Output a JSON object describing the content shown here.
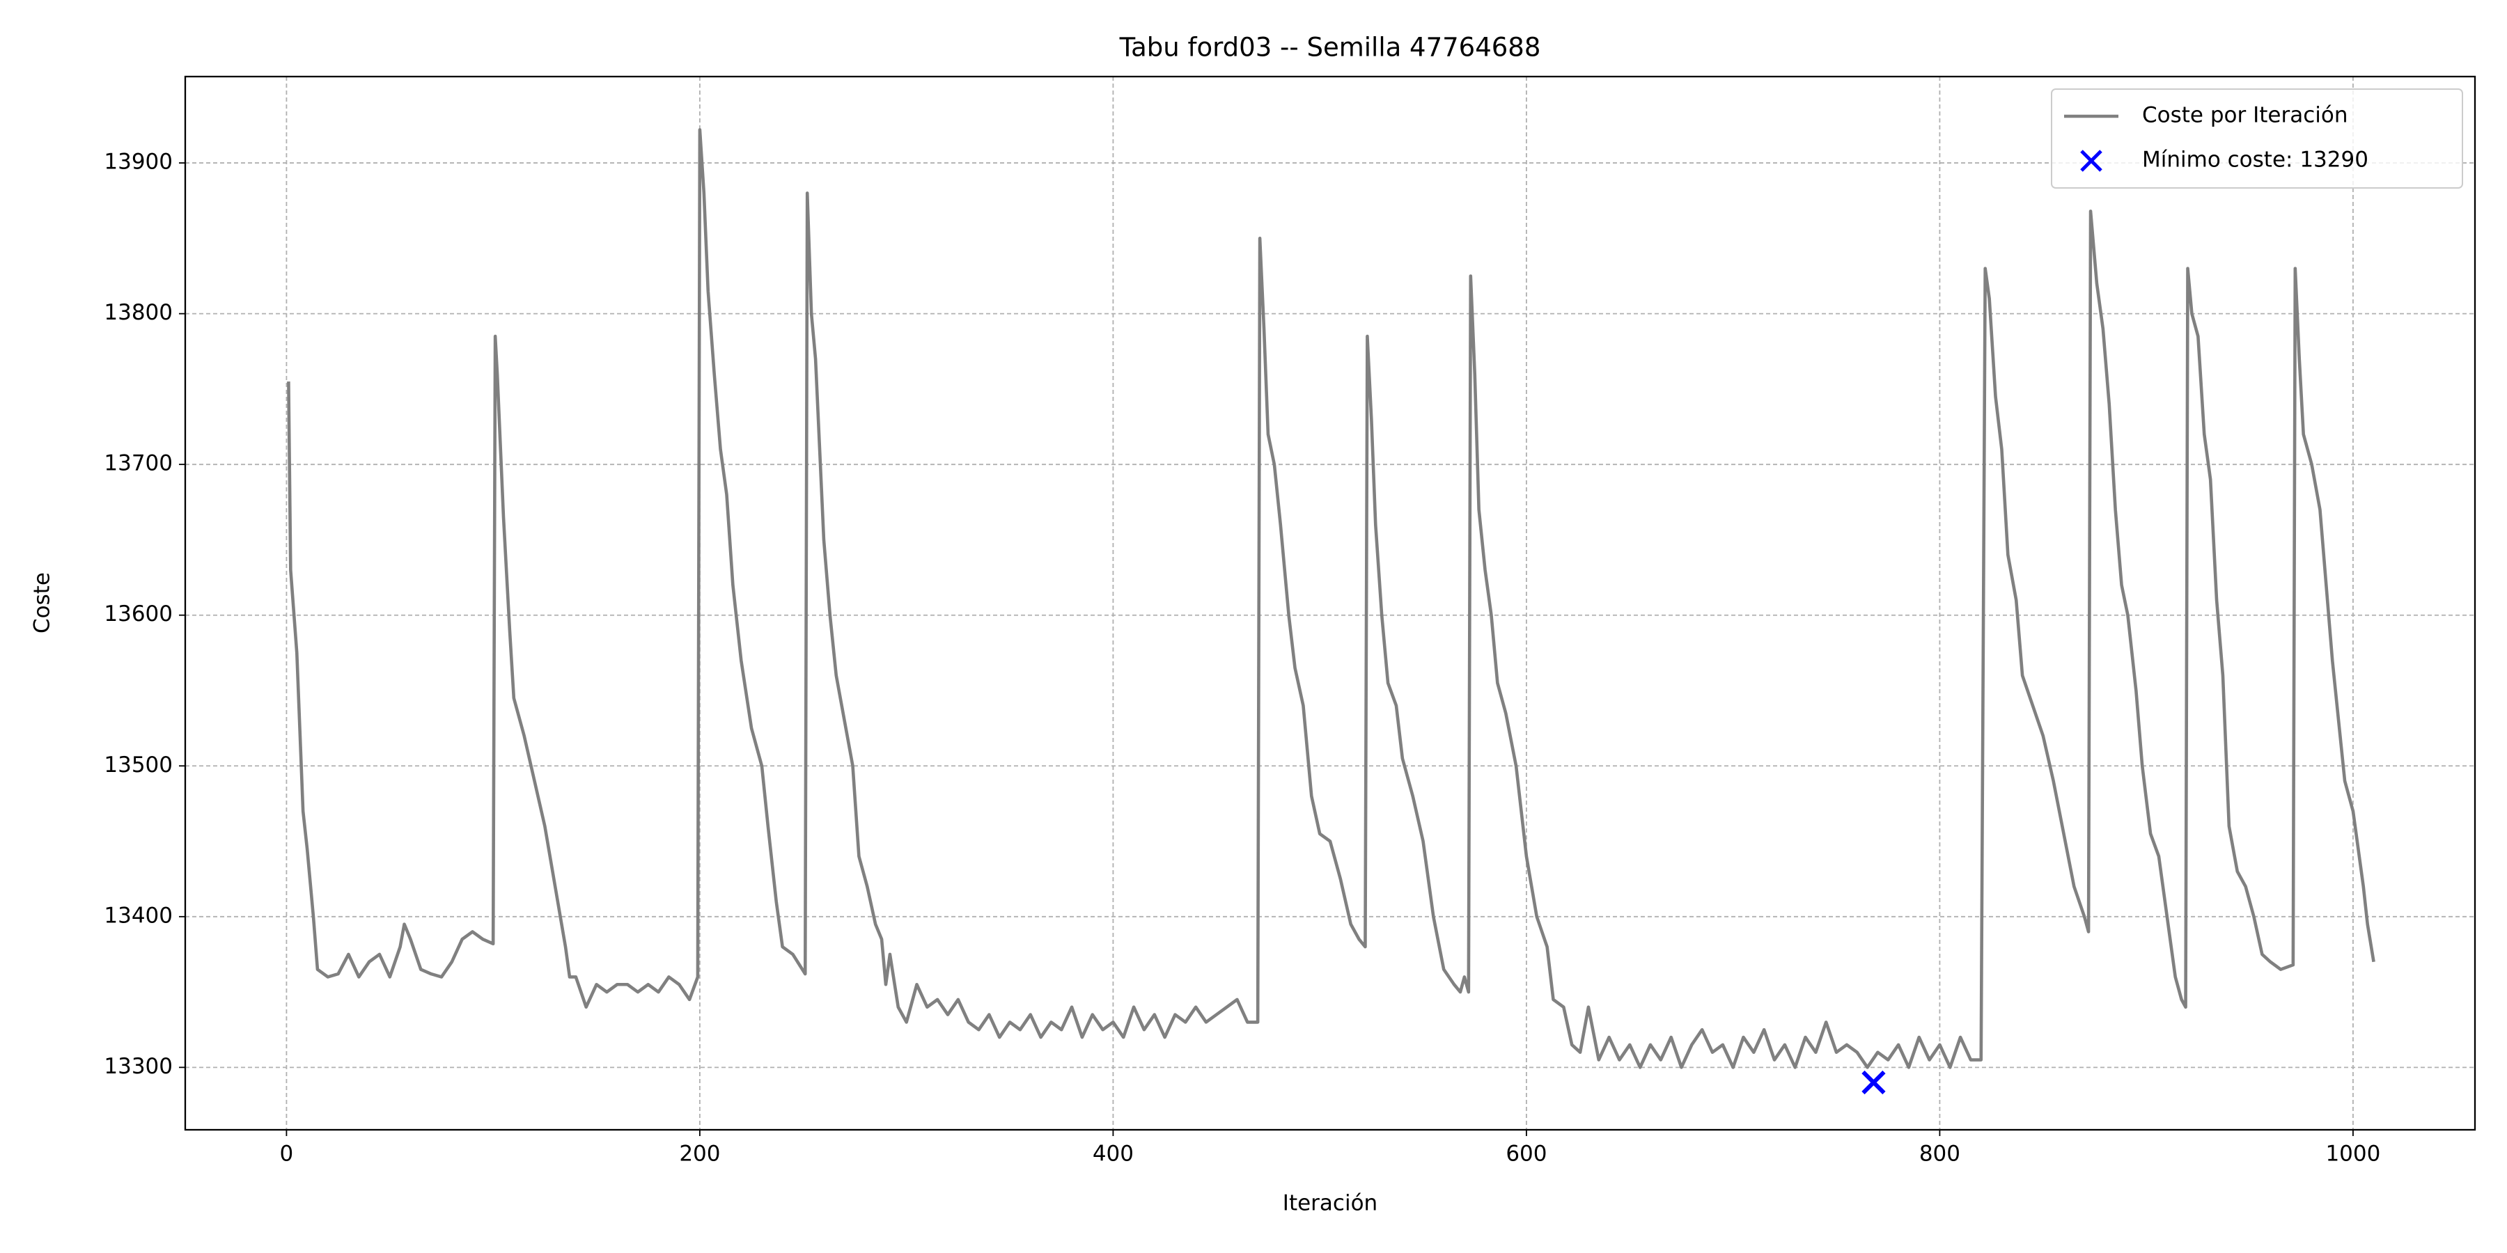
{
  "chart_data": {
    "type": "line",
    "title": "Tabu ford03 -- Semilla 47764688",
    "xlabel": "Iteración",
    "ylabel": "Coste",
    "xlim": [
      -49,
      1059
    ],
    "ylim": [
      13258.6,
      13957.3
    ],
    "xticks": [
      0,
      200,
      400,
      600,
      800,
      1000
    ],
    "yticks": [
      13300,
      13400,
      13500,
      13600,
      13700,
      13800,
      13900
    ],
    "grid": true,
    "legend": "upper right",
    "series": [
      {
        "name": "Coste por Iteración",
        "color": "#808080",
        "x": [
          1,
          2,
          5,
          8,
          10,
          13,
          15,
          20,
          25,
          30,
          35,
          40,
          45,
          50,
          55,
          57,
          60,
          65,
          70,
          75,
          80,
          85,
          90,
          95,
          100,
          101,
          102,
          105,
          108,
          110,
          115,
          120,
          125,
          130,
          135,
          137,
          140,
          145,
          150,
          155,
          160,
          165,
          170,
          175,
          180,
          185,
          190,
          195,
          199,
          200,
          202,
          204,
          207,
          210,
          213,
          216,
          220,
          225,
          230,
          233,
          237,
          240,
          245,
          251,
          252,
          254,
          256,
          258,
          260,
          263,
          266,
          270,
          274,
          277,
          281,
          285,
          288,
          290,
          292,
          296,
          300,
          305,
          310,
          315,
          320,
          325,
          330,
          335,
          340,
          345,
          350,
          355,
          360,
          365,
          370,
          375,
          380,
          385,
          390,
          395,
          400,
          405,
          410,
          415,
          420,
          425,
          430,
          435,
          440,
          445,
          450,
          455,
          460,
          465,
          470,
          471,
          473,
          475,
          478,
          481,
          485,
          488,
          492,
          496,
          500,
          505,
          510,
          515,
          519,
          522,
          523,
          525,
          527,
          530,
          533,
          537,
          540,
          545,
          550,
          555,
          560,
          565,
          568,
          570,
          572,
          573,
          575,
          577,
          580,
          583,
          586,
          590,
          595,
          600,
          605,
          610,
          613,
          618,
          622,
          626,
          630,
          635,
          640,
          645,
          650,
          655,
          660,
          665,
          670,
          675,
          680,
          685,
          690,
          695,
          700,
          705,
          710,
          715,
          720,
          725,
          730,
          735,
          740,
          745,
          750,
          755,
          760,
          765,
          770,
          775,
          780,
          785,
          790,
          795,
          800,
          805,
          810,
          815,
          820,
          822,
          824,
          827,
          830,
          833,
          837,
          840,
          845,
          850,
          855,
          860,
          865,
          870,
          872,
          873,
          876,
          879,
          882,
          885,
          888,
          891,
          895,
          898,
          902,
          906,
          910,
          914,
          917,
          919,
          920,
          922,
          925,
          928,
          931,
          934,
          937,
          940,
          944,
          948,
          952,
          956,
          960,
          965,
          971,
          972,
          974,
          976,
          980,
          984,
          987,
          990,
          993,
          996,
          1000,
          1005,
          1007,
          1010
        ],
        "values": [
          13755,
          13630,
          13575,
          13470,
          13445,
          13400,
          13365,
          13360,
          13362,
          13375,
          13360,
          13370,
          13375,
          13360,
          13380,
          13395,
          13385,
          13365,
          13362,
          13360,
          13370,
          13385,
          13390,
          13385,
          13382,
          13785,
          13760,
          13665,
          13590,
          13545,
          13520,
          13490,
          13460,
          13420,
          13380,
          13360,
          13360,
          13340,
          13355,
          13350,
          13355,
          13355,
          13350,
          13355,
          13350,
          13360,
          13355,
          13345,
          13360,
          13922,
          13880,
          13815,
          13760,
          13710,
          13680,
          13620,
          13570,
          13525,
          13500,
          13460,
          13410,
          13380,
          13375,
          13362,
          13880,
          13800,
          13770,
          13710,
          13650,
          13600,
          13560,
          13530,
          13500,
          13440,
          13420,
          13395,
          13385,
          13355,
          13375,
          13340,
          13330,
          13355,
          13340,
          13345,
          13335,
          13345,
          13330,
          13325,
          13335,
          13320,
          13330,
          13325,
          13335,
          13320,
          13330,
          13325,
          13340,
          13320,
          13335,
          13325,
          13330,
          13320,
          13340,
          13325,
          13335,
          13320,
          13335,
          13330,
          13340,
          13330,
          13335,
          13340,
          13345,
          13330,
          13330,
          13850,
          13790,
          13720,
          13700,
          13660,
          13600,
          13565,
          13540,
          13480,
          13455,
          13450,
          13425,
          13395,
          13385,
          13380,
          13785,
          13730,
          13660,
          13600,
          13555,
          13540,
          13505,
          13480,
          13450,
          13400,
          13365,
          13355,
          13350,
          13360,
          13350,
          13825,
          13760,
          13670,
          13630,
          13600,
          13555,
          13535,
          13500,
          13440,
          13400,
          13380,
          13345,
          13340,
          13315,
          13310,
          13340,
          13305,
          13320,
          13305,
          13315,
          13300,
          13315,
          13305,
          13320,
          13300,
          13315,
          13325,
          13310,
          13315,
          13300,
          13320,
          13310,
          13325,
          13305,
          13315,
          13300,
          13320,
          13310,
          13330,
          13310,
          13315,
          13310,
          13300,
          13310,
          13305,
          13315,
          13300,
          13320,
          13305,
          13315,
          13300,
          13320,
          13305,
          13305,
          13830,
          13810,
          13745,
          13710,
          13640,
          13610,
          13560,
          13540,
          13520,
          13490,
          13455,
          13420,
          13400,
          13390,
          13868,
          13820,
          13790,
          13740,
          13670,
          13620,
          13600,
          13550,
          13500,
          13455,
          13440,
          13400,
          13360,
          13345,
          13340,
          13830,
          13800,
          13785,
          13720,
          13690,
          13610,
          13560,
          13460,
          13430,
          13420,
          13400,
          13375,
          13370,
          13365,
          13368,
          13830,
          13770,
          13720,
          13700,
          13670,
          13620,
          13570,
          13530,
          13490,
          13470,
          13420,
          13395,
          13370
        ]
      },
      {
        "name": "Mínimo coste: 13290",
        "color": "#0000ff",
        "marker": "x",
        "x": [
          768
        ],
        "values": [
          13290
        ]
      }
    ]
  }
}
